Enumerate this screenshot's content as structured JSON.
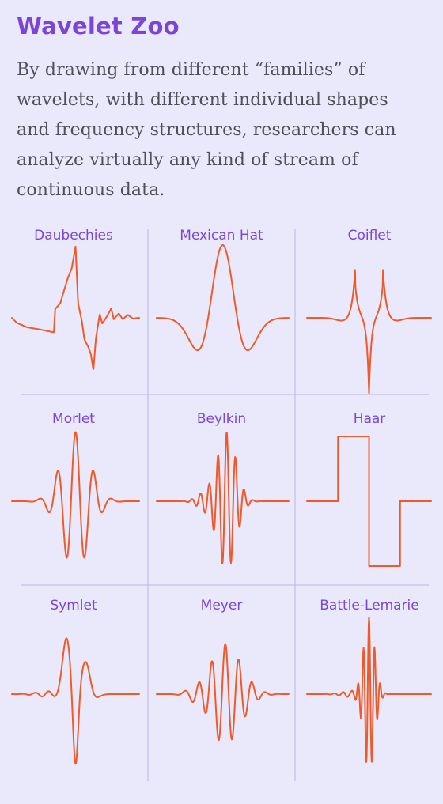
{
  "title": "Wavelet Zoo",
  "intro": "By drawing from different “families” of wavelets, with different individual shapes and frequency structures, researchers can analyze virtually any kind of stream of continuous data.",
  "colors": {
    "background": "#eae9fb",
    "accent": "#7b45d8",
    "wave": "#f05a2a",
    "grid_line": "#b9b3ea",
    "body_text": "#4f4f58"
  },
  "wavelets": [
    {
      "name": "Daubechies",
      "shape": "daubechies"
    },
    {
      "name": "Mexican Hat",
      "shape": "mexican-hat"
    },
    {
      "name": "Coiflet",
      "shape": "coiflet"
    },
    {
      "name": "Morlet",
      "shape": "morlet"
    },
    {
      "name": "Beylkin",
      "shape": "beylkin"
    },
    {
      "name": "Haar",
      "shape": "haar"
    },
    {
      "name": "Symlet",
      "shape": "symlet"
    },
    {
      "name": "Meyer",
      "shape": "meyer"
    },
    {
      "name": "Battle-Lemarie",
      "shape": "battle-lemarie"
    }
  ]
}
